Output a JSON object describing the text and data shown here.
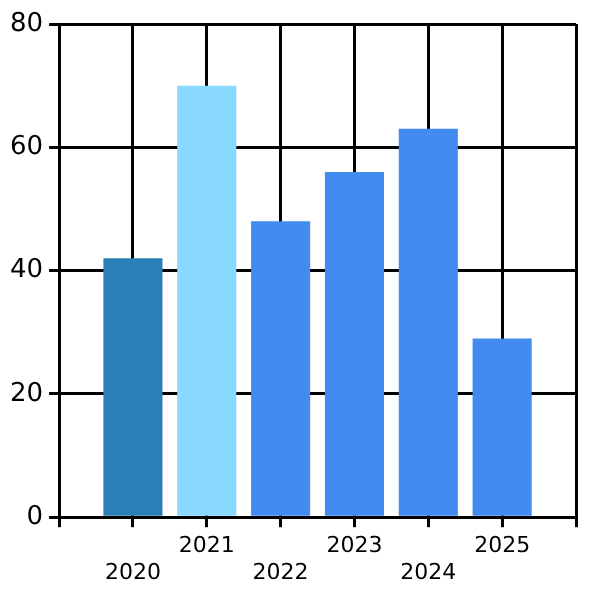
{
  "chart_data": {
    "type": "bar",
    "categories": [
      "2020",
      "2021",
      "2022",
      "2023",
      "2024",
      "2025"
    ],
    "values": [
      42,
      70,
      48,
      56,
      63,
      29
    ],
    "colors": [
      "#2a7fb8",
      "#88d8ff",
      "#428bef",
      "#428bef",
      "#428bef",
      "#428bef"
    ],
    "ylim": [
      0,
      80
    ],
    "yticks": [
      0,
      20,
      40,
      60,
      80
    ],
    "grid": true,
    "legend": false
  }
}
